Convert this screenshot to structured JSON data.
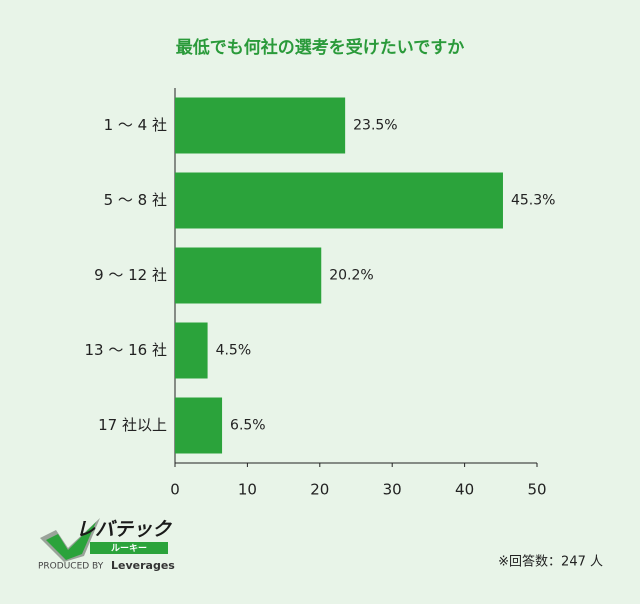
{
  "chart_data": {
    "type": "hbar",
    "title": "最低でも何社の選考を受けたいですか",
    "categories": [
      "1 〜 4 社",
      "5 〜 8 社",
      "9 〜 12 社",
      "13 〜 16 社",
      "17 社以上"
    ],
    "values": [
      23.5,
      45.3,
      20.2,
      4.5,
      6.5
    ],
    "value_labels": [
      "23.5%",
      "45.3%",
      "20.2%",
      "4.5%",
      "6.5%"
    ],
    "color": "#2ba33b",
    "xlim": [
      0,
      50
    ],
    "xticks": [
      0,
      10,
      20,
      30,
      40,
      50
    ],
    "grid": false
  },
  "logo": {
    "name": "レバテック",
    "sub": "ルーキー",
    "produced": "PRODUCED BY",
    "brand": "Leverages"
  },
  "note": "※回答数：247 人"
}
